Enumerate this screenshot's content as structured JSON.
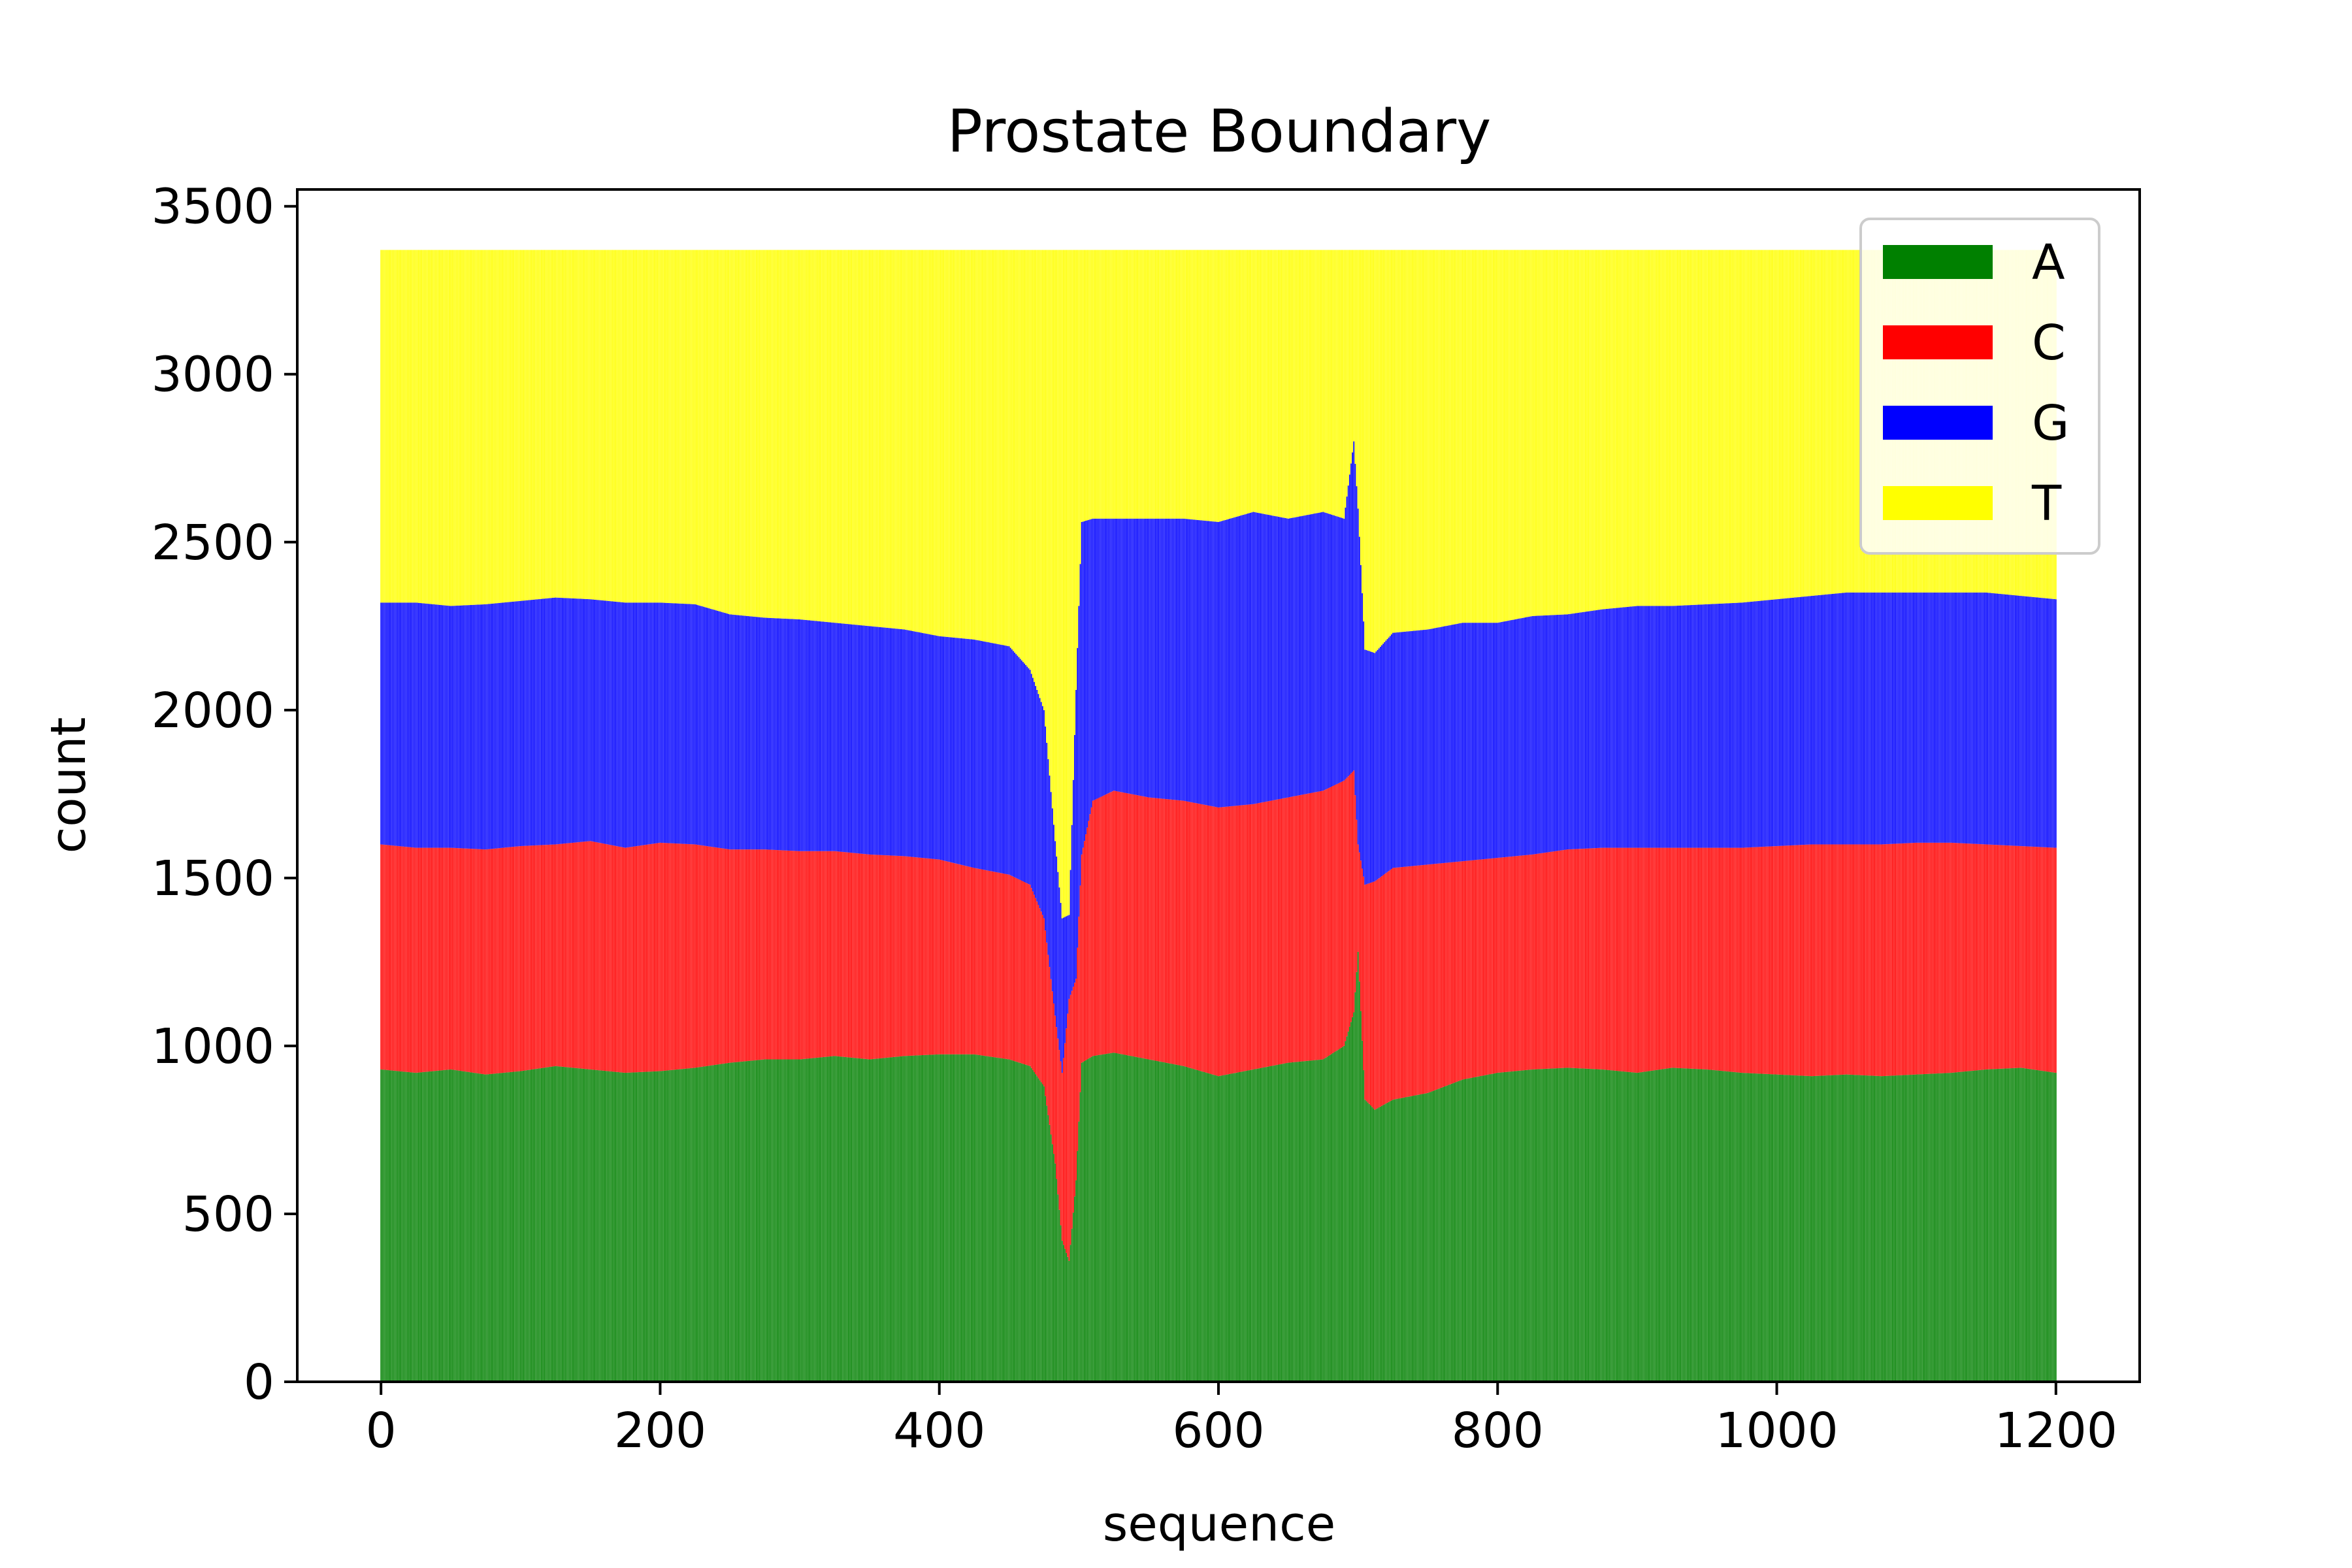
{
  "chart_data": {
    "type": "bar",
    "stacked": true,
    "title": "Prostate Boundary",
    "xlabel": "sequence",
    "ylabel": "count",
    "xlim": [
      -60,
      1260
    ],
    "ylim": [
      0,
      3550
    ],
    "x_ticks": [
      0,
      200,
      400,
      600,
      800,
      1000,
      1200
    ],
    "y_ticks": [
      0,
      500,
      1000,
      1500,
      2000,
      2500,
      3000,
      3500
    ],
    "grid": false,
    "legend": "top-right",
    "total": 3370,
    "x": [
      0,
      25,
      50,
      75,
      100,
      125,
      150,
      175,
      200,
      225,
      250,
      275,
      300,
      325,
      350,
      375,
      400,
      425,
      450,
      465,
      475,
      483,
      488,
      493,
      498,
      502,
      510,
      525,
      550,
      575,
      600,
      625,
      650,
      675,
      690,
      697,
      700,
      705,
      712,
      725,
      750,
      775,
      800,
      825,
      850,
      875,
      900,
      925,
      950,
      975,
      1000,
      1025,
      1050,
      1075,
      1100,
      1125,
      1150,
      1175,
      1200
    ],
    "series": [
      {
        "name": "A",
        "color": "#008000",
        "values": [
          930,
          920,
          930,
          915,
          925,
          940,
          930,
          920,
          925,
          935,
          950,
          960,
          960,
          970,
          960,
          970,
          975,
          975,
          960,
          940,
          880,
          650,
          420,
          360,
          600,
          950,
          970,
          980,
          960,
          940,
          910,
          930,
          950,
          960,
          1000,
          1100,
          1280,
          840,
          810,
          840,
          860,
          900,
          920,
          930,
          935,
          930,
          920,
          935,
          930,
          920,
          915,
          910,
          915,
          910,
          915,
          920,
          930,
          935,
          920
        ]
      },
      {
        "name": "C",
        "color": "#ff0000",
        "values": [
          670,
          670,
          660,
          670,
          670,
          660,
          680,
          670,
          680,
          665,
          635,
          625,
          620,
          610,
          610,
          595,
          580,
          555,
          550,
          540,
          500,
          440,
          500,
          780,
          600,
          620,
          760,
          780,
          780,
          790,
          800,
          790,
          790,
          800,
          790,
          720,
          320,
          640,
          680,
          690,
          680,
          650,
          640,
          640,
          650,
          660,
          670,
          655,
          660,
          670,
          680,
          690,
          685,
          690,
          690,
          685,
          670,
          660,
          670
        ]
      },
      {
        "name": "G",
        "color": "#0000ff",
        "values": [
          720,
          730,
          720,
          730,
          730,
          735,
          720,
          730,
          715,
          715,
          700,
          690,
          690,
          680,
          680,
          675,
          665,
          680,
          680,
          640,
          620,
          520,
          460,
          250,
          860,
          990,
          840,
          810,
          830,
          840,
          850,
          870,
          830,
          830,
          780,
          980,
          1000,
          700,
          680,
          700,
          700,
          710,
          700,
          710,
          700,
          710,
          720,
          720,
          725,
          730,
          735,
          740,
          750,
          750,
          745,
          745,
          750,
          745,
          740
        ]
      },
      {
        "name": "T",
        "color": "#ffff00",
        "values": [
          1050,
          1050,
          1060,
          1055,
          1045,
          1035,
          1040,
          1050,
          1050,
          1055,
          1085,
          1095,
          1100,
          1110,
          1120,
          1130,
          1150,
          1160,
          1180,
          1250,
          1370,
          1760,
          1990,
          1980,
          1310,
          810,
          800,
          800,
          800,
          800,
          810,
          780,
          800,
          780,
          800,
          570,
          770,
          1190,
          1200,
          1140,
          1130,
          1110,
          1110,
          1090,
          1085,
          1070,
          1060,
          1060,
          1055,
          1050,
          1040,
          1030,
          1020,
          1020,
          1020,
          1020,
          1020,
          1030,
          1040
        ]
      }
    ]
  }
}
